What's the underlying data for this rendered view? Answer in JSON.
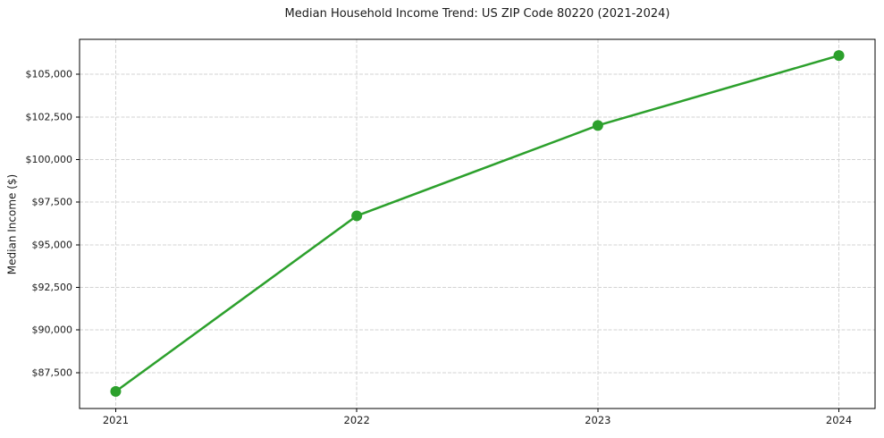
{
  "title": "Median Household Income Trend: US ZIP Code 80220 (2021-2024)",
  "colors": {
    "line": "#2ca02c",
    "marker": "#2ca02c",
    "grid": "#d3d3d3",
    "spine": "#000000",
    "text": "#1a1a1a",
    "background": "#ffffff"
  },
  "chart_data": {
    "type": "line",
    "title": "Median Household Income Trend: US ZIP Code 80220 (2021-2024)",
    "xlabel": "",
    "ylabel": "Median Income ($)",
    "x": [
      2021,
      2022,
      2023,
      2024
    ],
    "categories": [
      "2021",
      "2022",
      "2023",
      "2024"
    ],
    "series": [
      {
        "name": "Median Household Income",
        "values": [
          86400,
          96700,
          102000,
          106100
        ]
      }
    ],
    "x_ticks": [
      2021,
      2022,
      2023,
      2024
    ],
    "x_tick_labels": [
      "2021",
      "2022",
      "2023",
      "2024"
    ],
    "y_ticks": [
      87500,
      90000,
      92500,
      95000,
      97500,
      100000,
      102500,
      105000
    ],
    "y_tick_labels": [
      "$87,500",
      "$90,000",
      "$92,500",
      "$95,000",
      "$97,500",
      "$100,000",
      "$102,500",
      "$105,000"
    ],
    "xlim": [
      2020.85,
      2024.15
    ],
    "ylim": [
      85400,
      107050
    ],
    "grid": "dashed-both-axes",
    "legend": "none",
    "line_width": 2.5,
    "marker": "circle",
    "marker_radius": 6
  }
}
